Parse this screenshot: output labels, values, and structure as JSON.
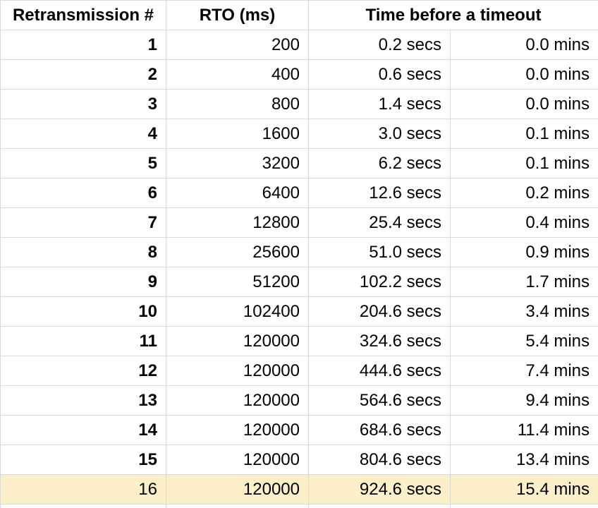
{
  "table": {
    "headers": [
      "Retransmission #",
      "RTO (ms)",
      "Time before a timeout"
    ],
    "rows": [
      [
        "1",
        "200",
        "0.2 secs",
        "0.0 mins"
      ],
      [
        "2",
        "400",
        "0.6 secs",
        "0.0 mins"
      ],
      [
        "3",
        "800",
        "1.4 secs",
        "0.0 mins"
      ],
      [
        "4",
        "1600",
        "3.0 secs",
        "0.1 mins"
      ],
      [
        "5",
        "3200",
        "6.2 secs",
        "0.1 mins"
      ],
      [
        "6",
        "6400",
        "12.6 secs",
        "0.2 mins"
      ],
      [
        "7",
        "12800",
        "25.4 secs",
        "0.4 mins"
      ],
      [
        "8",
        "25600",
        "51.0 secs",
        "0.9 mins"
      ],
      [
        "9",
        "51200",
        "102.2 secs",
        "1.7 mins"
      ],
      [
        "10",
        "102400",
        "204.6 secs",
        "3.4 mins"
      ],
      [
        "11",
        "120000",
        "324.6 secs",
        "5.4 mins"
      ],
      [
        "12",
        "120000",
        "444.6 secs",
        "7.4 mins"
      ],
      [
        "13",
        "120000",
        "564.6 secs",
        "9.4 mins"
      ],
      [
        "14",
        "120000",
        "684.6 secs",
        "11.4 mins"
      ],
      [
        "15",
        "120000",
        "804.6 secs",
        "13.4 mins"
      ],
      [
        "16",
        "120000",
        "924.6 secs",
        "15.4 mins"
      ]
    ]
  }
}
